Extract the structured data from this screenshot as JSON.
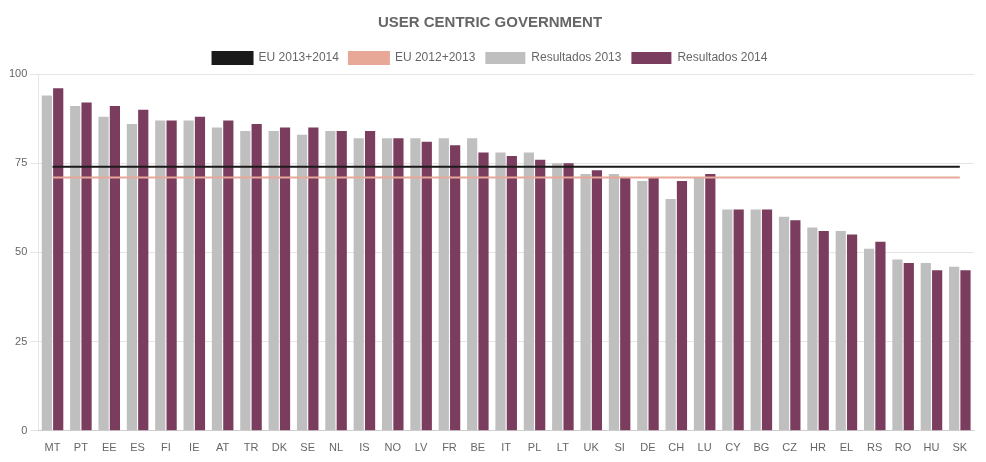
{
  "chart_data": {
    "type": "bar",
    "title": "USER CENTRIC GOVERNMENT",
    "categories": [
      "MT",
      "PT",
      "EE",
      "ES",
      "FI",
      "IE",
      "AT",
      "TR",
      "DK",
      "SE",
      "NL",
      "IS",
      "NO",
      "LV",
      "FR",
      "BE",
      "IT",
      "PL",
      "LT",
      "UK",
      "SI",
      "DE",
      "CH",
      "LU",
      "CY",
      "BG",
      "CZ",
      "HR",
      "EL",
      "RS",
      "RO",
      "HU",
      "SK"
    ],
    "series": [
      {
        "name": "Resultados 2013",
        "color": "#c0bfc0",
        "values": [
          94,
          91,
          88,
          86,
          87,
          87,
          85,
          84,
          84,
          83,
          84,
          82,
          82,
          82,
          82,
          82,
          78,
          78,
          75,
          72,
          72,
          70,
          65,
          71,
          62,
          62,
          60,
          57,
          56,
          51,
          48,
          47,
          46
        ]
      },
      {
        "name": "Resultados 2014",
        "color": "#7b3d5e",
        "values": [
          96,
          92,
          91,
          90,
          87,
          88,
          87,
          86,
          85,
          85,
          84,
          84,
          82,
          81,
          80,
          78,
          77,
          76,
          75,
          73,
          71,
          71,
          70,
          72,
          62,
          62,
          59,
          56,
          55,
          53,
          47,
          45,
          45
        ]
      }
    ],
    "reference_lines": [
      {
        "name": "EU 2012+2013",
        "color": "#e8a898",
        "value": 71
      },
      {
        "name": "EU 2013+2014",
        "color": "#1a1a1a",
        "value": 74
      }
    ],
    "ylim": [
      0,
      100
    ],
    "yticks": [
      0,
      25,
      50,
      75,
      100
    ],
    "grid": true
  }
}
